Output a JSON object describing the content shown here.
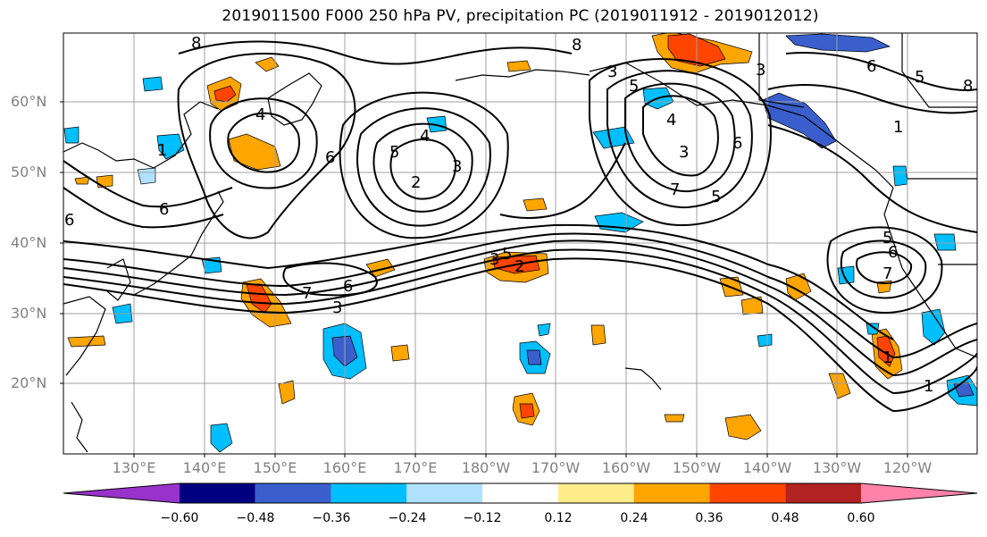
{
  "title": "2019011500 F000 250 hPa PV, precipitation PC (2019011912 - 2019012012)",
  "map": {
    "lat_labels": [
      "60°N",
      "50°N",
      "40°N",
      "30°N",
      "20°N"
    ],
    "lon_labels": [
      "130°E",
      "140°E",
      "150°E",
      "160°E",
      "170°E",
      "180°W",
      "170°W",
      "160°W",
      "150°W",
      "140°W",
      "130°W",
      "120°W"
    ],
    "contour_labels": [
      "8",
      "8",
      "4",
      "6",
      "6",
      "5",
      "4",
      "3",
      "2",
      "3",
      "5",
      "8",
      "3",
      "4",
      "6",
      "5",
      "7",
      "3",
      "1",
      "5",
      "7",
      "6",
      "6",
      "1",
      "1",
      "5",
      "3",
      "7",
      "6",
      "2",
      "5",
      "3",
      "1",
      "6"
    ],
    "grid": true,
    "colors": {
      "contour": "#000000",
      "coast": "#000000",
      "grid": "#a0a0a0"
    }
  },
  "colorbar": {
    "tick_labels": [
      "−0.60",
      "−0.48",
      "−0.36",
      "−0.24",
      "−0.12",
      "0.12",
      "0.24",
      "0.36",
      "0.48",
      "0.60"
    ],
    "bins": [
      {
        "min": null,
        "max": -0.6,
        "color": "#9932cc"
      },
      {
        "min": -0.6,
        "max": -0.48,
        "color": "#000080"
      },
      {
        "min": -0.48,
        "max": -0.36,
        "color": "#3a5fcd"
      },
      {
        "min": -0.36,
        "max": -0.24,
        "color": "#00bfff"
      },
      {
        "min": -0.24,
        "max": -0.12,
        "color": "#b0e2ff"
      },
      {
        "min": -0.12,
        "max": 0.12,
        "color": "#ffffff"
      },
      {
        "min": 0.12,
        "max": 0.24,
        "color": "#ffec8b"
      },
      {
        "min": 0.24,
        "max": 0.36,
        "color": "#ffa500"
      },
      {
        "min": 0.36,
        "max": 0.48,
        "color": "#ff4500"
      },
      {
        "min": 0.48,
        "max": 0.6,
        "color": "#b22222"
      },
      {
        "min": 0.6,
        "max": null,
        "color": "#ff82ab"
      }
    ]
  }
}
